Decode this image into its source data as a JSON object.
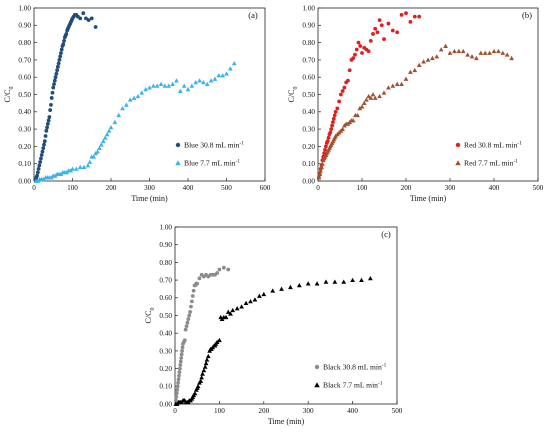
{
  "chart_data": [
    {
      "panel": "(a)",
      "type": "scatter",
      "xlabel": "Time (min)",
      "ylabel": "C/C",
      "ylabel_sub": "0",
      "xlim": [
        0,
        600
      ],
      "ylim": [
        0,
        1.0
      ],
      "xticks": [
        "0",
        "100",
        "200",
        "300",
        "400",
        "500",
        "600"
      ],
      "yticks": [
        "0.00",
        "0.10",
        "0.20",
        "0.30",
        "0.40",
        "0.50",
        "0.60",
        "0.70",
        "0.80",
        "0.90",
        "1.00"
      ],
      "legend_position": "bottom-right",
      "series": [
        {
          "name": "Blue 30.8 mL min",
          "name_sup": "-1",
          "marker": "circle",
          "color": "#1f4e79",
          "x": [
            4,
            6,
            8,
            10,
            12,
            14,
            16,
            18,
            20,
            22,
            24,
            26,
            28,
            30,
            32,
            34,
            36,
            38,
            40,
            42,
            44,
            46,
            48,
            50,
            52,
            54,
            56,
            58,
            60,
            62,
            64,
            66,
            68,
            70,
            72,
            74,
            76,
            78,
            80,
            82,
            84,
            86,
            88,
            90,
            92,
            94,
            96,
            98,
            100,
            103,
            106,
            110,
            114,
            120,
            128,
            135,
            142,
            150,
            160
          ],
          "y": [
            0.01,
            0.02,
            0.03,
            0.05,
            0.07,
            0.09,
            0.11,
            0.13,
            0.15,
            0.17,
            0.19,
            0.21,
            0.23,
            0.26,
            0.29,
            0.31,
            0.33,
            0.35,
            0.37,
            0.41,
            0.44,
            0.48,
            0.51,
            0.54,
            0.56,
            0.58,
            0.6,
            0.62,
            0.64,
            0.66,
            0.68,
            0.7,
            0.72,
            0.74,
            0.76,
            0.78,
            0.79,
            0.81,
            0.83,
            0.84,
            0.85,
            0.87,
            0.88,
            0.89,
            0.9,
            0.91,
            0.92,
            0.93,
            0.94,
            0.95,
            0.96,
            0.96,
            0.95,
            0.94,
            0.97,
            0.94,
            0.93,
            0.94,
            0.89
          ]
        },
        {
          "name": "Blue 7.7 mL min",
          "name_sup": "-1",
          "marker": "triangle",
          "color": "#3cb3e8",
          "x": [
            5,
            10,
            15,
            20,
            25,
            30,
            35,
            40,
            45,
            50,
            55,
            60,
            65,
            70,
            75,
            80,
            85,
            90,
            95,
            100,
            110,
            120,
            130,
            140,
            145,
            150,
            155,
            160,
            165,
            170,
            175,
            180,
            185,
            190,
            195,
            200,
            210,
            220,
            230,
            240,
            250,
            260,
            270,
            280,
            290,
            300,
            310,
            320,
            330,
            340,
            350,
            360,
            370,
            380,
            390,
            400,
            410,
            420,
            430,
            440,
            450,
            460,
            470,
            480,
            490,
            500,
            510,
            520
          ],
          "y": [
            0.0,
            0.0,
            0.01,
            0.01,
            0.01,
            0.02,
            0.02,
            0.02,
            0.02,
            0.03,
            0.03,
            0.04,
            0.04,
            0.04,
            0.05,
            0.05,
            0.05,
            0.06,
            0.06,
            0.07,
            0.07,
            0.08,
            0.08,
            0.09,
            0.11,
            0.14,
            0.14,
            0.16,
            0.17,
            0.19,
            0.21,
            0.23,
            0.25,
            0.27,
            0.29,
            0.31,
            0.34,
            0.38,
            0.42,
            0.44,
            0.47,
            0.48,
            0.49,
            0.51,
            0.53,
            0.54,
            0.55,
            0.55,
            0.56,
            0.55,
            0.55,
            0.56,
            0.58,
            0.52,
            0.55,
            0.53,
            0.55,
            0.57,
            0.58,
            0.57,
            0.56,
            0.58,
            0.59,
            0.61,
            0.61,
            0.62,
            0.65,
            0.68
          ]
        }
      ]
    },
    {
      "panel": "(b)",
      "type": "scatter",
      "xlabel": "Time (min)",
      "ylabel": "C/C",
      "ylabel_sub": "0",
      "xlim": [
        0,
        500
      ],
      "ylim": [
        0,
        1.0
      ],
      "xticks": [
        "0",
        "100",
        "200",
        "300",
        "400",
        "500"
      ],
      "yticks": [
        "0.00",
        "0.10",
        "0.20",
        "0.30",
        "0.40",
        "0.50",
        "0.60",
        "0.70",
        "0.80",
        "0.90",
        "1.00"
      ],
      "legend_position": "bottom-right",
      "series": [
        {
          "name": "Red 30.8 mL min",
          "name_sup": "-1",
          "marker": "circle",
          "color": "#e02020",
          "x": [
            2,
            4,
            6,
            8,
            10,
            12,
            14,
            16,
            18,
            20,
            22,
            24,
            26,
            28,
            30,
            32,
            34,
            36,
            38,
            40,
            44,
            48,
            52,
            56,
            60,
            64,
            68,
            72,
            76,
            80,
            84,
            88,
            92,
            96,
            100,
            105,
            110,
            115,
            120,
            125,
            130,
            135,
            140,
            145,
            150,
            160,
            170,
            180,
            190,
            200,
            210,
            220,
            230
          ],
          "y": [
            0.02,
            0.04,
            0.07,
            0.09,
            0.12,
            0.14,
            0.16,
            0.18,
            0.2,
            0.22,
            0.23,
            0.25,
            0.27,
            0.28,
            0.3,
            0.32,
            0.34,
            0.36,
            0.38,
            0.4,
            0.42,
            0.46,
            0.5,
            0.52,
            0.54,
            0.57,
            0.58,
            0.64,
            0.7,
            0.71,
            0.73,
            0.76,
            0.8,
            0.78,
            0.74,
            0.77,
            0.76,
            0.75,
            0.81,
            0.85,
            0.88,
            0.86,
            0.93,
            0.9,
            0.82,
            0.91,
            0.87,
            0.86,
            0.96,
            0.97,
            0.92,
            0.95,
            0.95
          ]
        },
        {
          "name": "Red 7.7 mL min",
          "name_sup": "-1",
          "marker": "triangle",
          "color": "#a0522d",
          "x": [
            2,
            4,
            6,
            8,
            10,
            12,
            14,
            16,
            18,
            20,
            22,
            24,
            26,
            28,
            30,
            32,
            34,
            36,
            38,
            40,
            44,
            48,
            52,
            56,
            60,
            64,
            68,
            72,
            76,
            80,
            85,
            90,
            95,
            100,
            105,
            110,
            115,
            120,
            125,
            130,
            140,
            150,
            160,
            170,
            180,
            190,
            200,
            210,
            220,
            230,
            240,
            250,
            260,
            270,
            280,
            290,
            300,
            310,
            320,
            330,
            340,
            350,
            360,
            370,
            380,
            390,
            400,
            410,
            420,
            430,
            440
          ],
          "y": [
            0.02,
            0.04,
            0.06,
            0.08,
            0.1,
            0.12,
            0.13,
            0.14,
            0.15,
            0.16,
            0.17,
            0.18,
            0.19,
            0.2,
            0.21,
            0.22,
            0.23,
            0.24,
            0.25,
            0.26,
            0.27,
            0.28,
            0.29,
            0.3,
            0.32,
            0.33,
            0.33,
            0.34,
            0.35,
            0.35,
            0.38,
            0.38,
            0.42,
            0.43,
            0.45,
            0.47,
            0.49,
            0.48,
            0.5,
            0.48,
            0.49,
            0.51,
            0.54,
            0.55,
            0.56,
            0.56,
            0.59,
            0.63,
            0.64,
            0.67,
            0.69,
            0.7,
            0.71,
            0.72,
            0.76,
            0.78,
            0.74,
            0.75,
            0.75,
            0.75,
            0.73,
            0.72,
            0.71,
            0.74,
            0.74,
            0.74,
            0.75,
            0.75,
            0.74,
            0.73,
            0.71
          ]
        }
      ]
    },
    {
      "panel": "(c)",
      "type": "scatter",
      "xlabel": "Time (min)",
      "ylabel": "C/C",
      "ylabel_sub": "0",
      "xlim": [
        0,
        500
      ],
      "ylim": [
        0,
        1.0
      ],
      "xticks": [
        "0",
        "100",
        "200",
        "300",
        "400",
        "500"
      ],
      "yticks": [
        "0.00",
        "0.10",
        "0.20",
        "0.30",
        "0.40",
        "0.50",
        "0.60",
        "0.70",
        "0.80",
        "0.90",
        "1.00"
      ],
      "legend_position": "bottom-right",
      "series": [
        {
          "name": "Black 30.8 mL min",
          "name_sup": "-1",
          "marker": "circle",
          "color": "#8c8c8c",
          "x": [
            2,
            3,
            4,
            5,
            6,
            7,
            8,
            9,
            10,
            11,
            12,
            13,
            14,
            15,
            16,
            17,
            18,
            20,
            22,
            24,
            26,
            28,
            30,
            32,
            34,
            36,
            38,
            40,
            42,
            44,
            46,
            48,
            50,
            55,
            60,
            65,
            70,
            75,
            80,
            85,
            90,
            95,
            100,
            110,
            120
          ],
          "y": [
            0.02,
            0.04,
            0.06,
            0.08,
            0.1,
            0.12,
            0.14,
            0.16,
            0.18,
            0.2,
            0.22,
            0.24,
            0.26,
            0.28,
            0.3,
            0.32,
            0.34,
            0.35,
            0.36,
            0.42,
            0.44,
            0.46,
            0.48,
            0.5,
            0.52,
            0.55,
            0.58,
            0.61,
            0.64,
            0.67,
            0.67,
            0.68,
            0.68,
            0.71,
            0.73,
            0.72,
            0.73,
            0.72,
            0.73,
            0.73,
            0.73,
            0.74,
            0.76,
            0.77,
            0.76
          ]
        },
        {
          "name": "Black 7.7 mL min",
          "name_sup": "-1",
          "marker": "triangle",
          "color": "#000000",
          "x": [
            2,
            5,
            8,
            10,
            12,
            15,
            18,
            20,
            22,
            25,
            28,
            30,
            32,
            35,
            38,
            40,
            42,
            45,
            48,
            50,
            52,
            55,
            58,
            60,
            62,
            65,
            68,
            70,
            72,
            75,
            78,
            80,
            82,
            85,
            88,
            90,
            92,
            95,
            100,
            103,
            106,
            110,
            115,
            120,
            125,
            130,
            140,
            150,
            160,
            170,
            180,
            190,
            200,
            220,
            240,
            260,
            280,
            300,
            320,
            340,
            360,
            380,
            400,
            420,
            440
          ],
          "y": [
            0.0,
            0.0,
            0.01,
            0.01,
            0.01,
            0.01,
            0.02,
            0.02,
            0.02,
            0.01,
            0.01,
            0.01,
            0.02,
            0.02,
            0.03,
            0.04,
            0.05,
            0.06,
            0.08,
            0.09,
            0.1,
            0.12,
            0.13,
            0.15,
            0.17,
            0.19,
            0.21,
            0.23,
            0.25,
            0.27,
            0.3,
            0.31,
            0.31,
            0.32,
            0.33,
            0.33,
            0.34,
            0.35,
            0.36,
            0.49,
            0.48,
            0.49,
            0.49,
            0.52,
            0.51,
            0.53,
            0.54,
            0.55,
            0.57,
            0.58,
            0.59,
            0.61,
            0.62,
            0.64,
            0.65,
            0.66,
            0.67,
            0.68,
            0.68,
            0.69,
            0.69,
            0.69,
            0.7,
            0.7,
            0.71
          ]
        }
      ]
    }
  ]
}
